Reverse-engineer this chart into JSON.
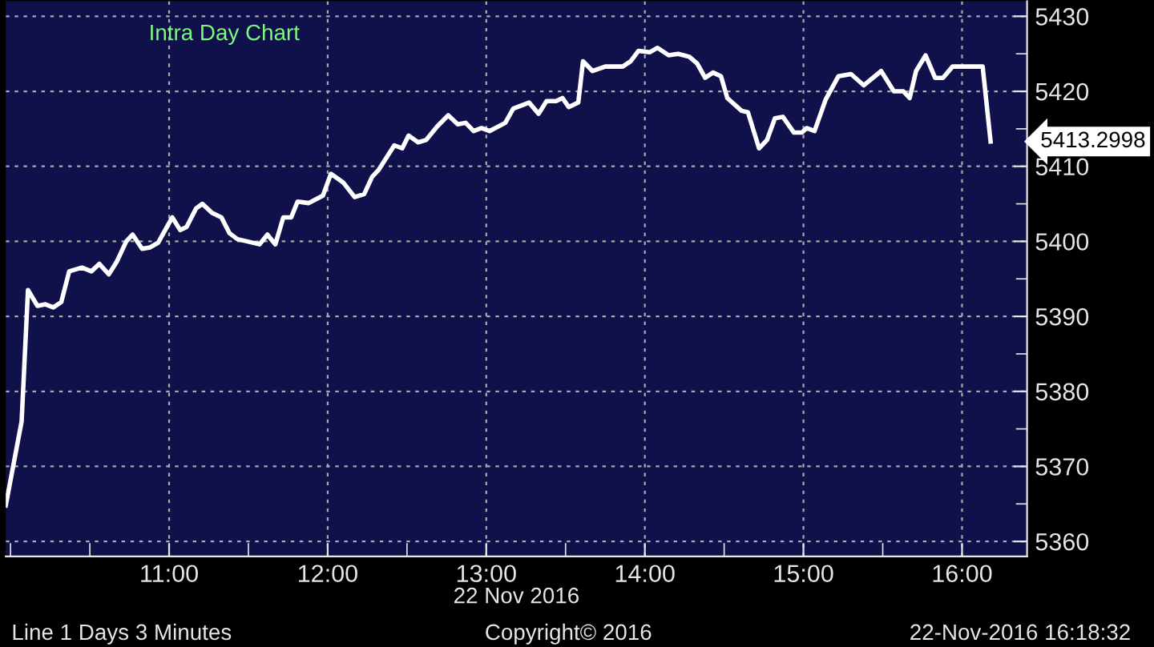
{
  "chart_data": {
    "type": "line",
    "title": "Intra Day Chart",
    "xlabel": "22 Nov 2016",
    "x": [
      9.97,
      10.07,
      10.11,
      10.17,
      10.22,
      10.27,
      10.32,
      10.37,
      10.45,
      10.51,
      10.56,
      10.62,
      10.67,
      10.73,
      10.77,
      10.83,
      10.88,
      10.93,
      11.02,
      11.07,
      11.11,
      11.17,
      11.21,
      11.27,
      11.33,
      11.38,
      11.43,
      11.49,
      11.57,
      11.62,
      11.67,
      11.72,
      11.77,
      11.81,
      11.88,
      11.97,
      12.02,
      12.1,
      12.17,
      12.23,
      12.28,
      12.32,
      12.42,
      12.47,
      12.51,
      12.57,
      12.62,
      12.69,
      12.76,
      12.82,
      12.87,
      12.92,
      12.97,
      13.02,
      13.12,
      13.17,
      13.27,
      13.33,
      13.38,
      13.44,
      13.48,
      13.52,
      13.58,
      13.61,
      13.67,
      13.75,
      13.86,
      13.91,
      13.96,
      14.03,
      14.08,
      14.15,
      14.21,
      14.28,
      14.33,
      14.38,
      14.43,
      14.48,
      14.52,
      14.61,
      14.65,
      14.72,
      14.77,
      14.82,
      14.87,
      14.94,
      14.99,
      15.02,
      15.07,
      15.14,
      15.22,
      15.3,
      15.38,
      15.49,
      15.57,
      15.63,
      15.67,
      15.71,
      15.77,
      15.83,
      15.88,
      15.94,
      16.13,
      16.18
    ],
    "series": [
      {
        "color": "#ffffff",
        "values": [
          5364.8,
          5376,
          5393.5,
          5391.4,
          5391.6,
          5391.2,
          5391.9,
          5396,
          5396.5,
          5396,
          5397,
          5395.6,
          5397.3,
          5400,
          5400.9,
          5399,
          5399.2,
          5399.8,
          5403.2,
          5401.5,
          5401.9,
          5404.4,
          5405,
          5403.8,
          5403.2,
          5401.1,
          5400.3,
          5400,
          5399.6,
          5400.9,
          5399.6,
          5403.2,
          5403.2,
          5405.3,
          5405.1,
          5406.1,
          5409,
          5407.8,
          5405.9,
          5406.3,
          5408.6,
          5409.5,
          5412.8,
          5412.4,
          5414.1,
          5413.2,
          5413.5,
          5415.3,
          5416.8,
          5415.6,
          5415.8,
          5414.7,
          5415.1,
          5414.7,
          5415.8,
          5417.7,
          5418.5,
          5417,
          5418.7,
          5418.7,
          5419.1,
          5417.9,
          5418.5,
          5424,
          5422.7,
          5423.3,
          5423.3,
          5424,
          5425.4,
          5425.2,
          5425.8,
          5424.8,
          5425,
          5424.6,
          5423.7,
          5421.8,
          5422.5,
          5422,
          5419.1,
          5417.4,
          5417.2,
          5412.4,
          5413.5,
          5416.4,
          5416.6,
          5414.5,
          5414.5,
          5415.1,
          5414.7,
          5418.9,
          5422,
          5422.3,
          5420.8,
          5422.7,
          5420,
          5420,
          5419.1,
          5422.7,
          5424.8,
          5421.8,
          5421.8,
          5423.3,
          5423.3,
          5413.3
        ]
      }
    ],
    "xlim": [
      9.97,
      16.41
    ],
    "xticks": [
      {
        "value": 10.0,
        "label": null
      },
      {
        "value": 10.5,
        "label": null
      },
      {
        "value": 11,
        "label": "11:00"
      },
      {
        "value": 11.5,
        "label": null
      },
      {
        "value": 12,
        "label": "12:00"
      },
      {
        "value": 12.5,
        "label": null
      },
      {
        "value": 13,
        "label": "13:00"
      },
      {
        "value": 13.5,
        "label": null
      },
      {
        "value": 14,
        "label": "14:00"
      },
      {
        "value": 14.5,
        "label": null
      },
      {
        "value": 15,
        "label": "15:00"
      },
      {
        "value": 15.5,
        "label": null
      },
      {
        "value": 16,
        "label": "16:00"
      }
    ],
    "ylim": [
      5358,
      5432
    ],
    "yticks": [
      5360,
      {
        "value": 5365,
        "label": null
      },
      5370,
      {
        "value": 5375,
        "label": null
      },
      5380,
      {
        "value": 5385,
        "label": null
      },
      5390,
      {
        "value": 5395,
        "label": null
      },
      5400,
      {
        "value": 5405,
        "label": null
      },
      5410,
      {
        "value": 5415,
        "label": null
      },
      5420,
      {
        "value": 5425,
        "label": null
      },
      5430
    ],
    "grid": true,
    "line_style": "solid",
    "marker": "none",
    "legend": false,
    "annotations": [
      "5413.2998",
      "Line 1 Days 3 Minutes",
      "Copyright© 2016",
      "22-Nov-2016 16:18:32"
    ]
  }
}
